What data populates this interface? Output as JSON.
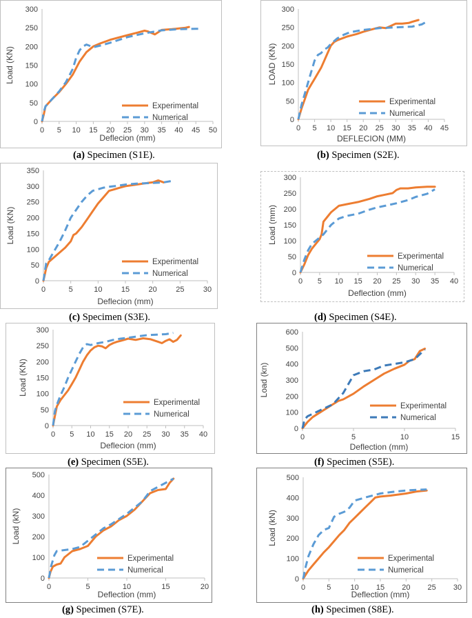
{
  "chart_data": [
    {
      "type": "line",
      "panel_label": "(a)",
      "caption_text": "Specimen (S1E).",
      "xlabel": "Deflecion (mm)",
      "ylabel": "Load (KN)",
      "xlim": [
        0,
        50
      ],
      "ylim": [
        0,
        300
      ],
      "xticks": [
        "0",
        "5",
        "10",
        "15",
        "20",
        "25",
        "30",
        "35",
        "40",
        "45",
        "50"
      ],
      "yticks": [
        "0",
        "50",
        "100",
        "150",
        "200",
        "250",
        "300"
      ],
      "series": [
        {
          "name": "Experimental",
          "color": "#ed7d31",
          "dash": "solid",
          "x": [
            0,
            0.5,
            1,
            3,
            5,
            7,
            9,
            11,
            13,
            15,
            17,
            20,
            25,
            28,
            30,
            31,
            33,
            34,
            35,
            38,
            40,
            42,
            43
          ],
          "y": [
            0,
            18,
            40,
            60,
            78,
            100,
            125,
            160,
            185,
            200,
            208,
            218,
            230,
            237,
            242,
            240,
            232,
            238,
            244,
            246,
            248,
            250,
            252
          ]
        },
        {
          "name": "Numerical",
          "color": "#5b9bd5",
          "dash": "dashed",
          "x": [
            0,
            0.5,
            1,
            3,
            5,
            7,
            9,
            10,
            11,
            12,
            13,
            15,
            17,
            20,
            25,
            30,
            35,
            40,
            45,
            46
          ],
          "y": [
            0,
            25,
            40,
            60,
            80,
            105,
            140,
            170,
            190,
            200,
            205,
            198,
            202,
            210,
            225,
            235,
            243,
            246,
            247,
            247
          ]
        }
      ]
    },
    {
      "type": "line",
      "panel_label": "(b)",
      "caption_text": "Specimen (S2E).",
      "xlabel": "DEFLECION (MM)",
      "ylabel": "LOAD (KN)",
      "xlim": [
        0,
        45
      ],
      "ylim": [
        0,
        300
      ],
      "xticks": [
        "0",
        "5",
        "10",
        "15",
        "20",
        "25",
        "30",
        "35",
        "40",
        "45"
      ],
      "yticks": [
        "0",
        "50",
        "100",
        "150",
        "200",
        "250",
        "300"
      ],
      "series": [
        {
          "name": "Experimental",
          "color": "#ed7d31",
          "dash": "solid",
          "x": [
            0,
            1,
            2,
            3,
            4,
            5,
            6,
            7,
            8,
            9,
            10,
            11,
            12,
            15,
            18,
            20,
            22,
            25,
            27,
            28,
            30,
            32,
            34,
            35,
            37
          ],
          "y": [
            0,
            30,
            55,
            80,
            95,
            110,
            125,
            140,
            160,
            180,
            200,
            210,
            215,
            225,
            232,
            238,
            243,
            250,
            248,
            252,
            260,
            260,
            262,
            265,
            270
          ]
        },
        {
          "name": "Numerical",
          "color": "#5b9bd5",
          "dash": "dashed",
          "x": [
            0,
            1,
            2,
            3,
            4,
            5,
            6,
            7,
            8,
            9,
            10,
            12,
            14,
            16,
            18,
            20,
            25,
            30,
            35,
            38,
            40
          ],
          "y": [
            0,
            40,
            70,
            100,
            130,
            160,
            175,
            180,
            190,
            195,
            205,
            220,
            230,
            237,
            240,
            243,
            248,
            250,
            252,
            258,
            268
          ]
        }
      ]
    },
    {
      "type": "line",
      "panel_label": "(c)",
      "caption_text": "Specimen (S3E).",
      "xlabel": "Deflecion (mm)",
      "ylabel": "Load (KN)",
      "xlim": [
        0,
        30
      ],
      "ylim": [
        0,
        350
      ],
      "xticks": [
        "0",
        "5",
        "10",
        "15",
        "20",
        "25",
        "30"
      ],
      "yticks": [
        "0",
        "50",
        "100",
        "150",
        "200",
        "250",
        "300",
        "350"
      ],
      "series": [
        {
          "name": "Experimental",
          "color": "#ed7d31",
          "dash": "solid",
          "x": [
            0,
            0.2,
            0.5,
            1,
            2,
            3,
            4,
            5,
            5.5,
            6,
            7,
            8,
            9,
            10,
            11,
            12,
            13,
            14,
            15,
            17,
            19,
            20,
            21,
            22
          ],
          "y": [
            0,
            15,
            40,
            60,
            75,
            90,
            105,
            125,
            145,
            150,
            170,
            195,
            220,
            245,
            265,
            285,
            290,
            295,
            300,
            305,
            310,
            312,
            318,
            312
          ]
        },
        {
          "name": "Numerical",
          "color": "#5b9bd5",
          "dash": "dashed",
          "x": [
            0,
            0.5,
            1,
            2,
            3,
            4,
            5,
            6,
            7,
            8,
            9,
            10,
            11,
            12,
            13,
            15,
            17,
            20,
            22,
            24
          ],
          "y": [
            0,
            55,
            65,
            95,
            125,
            160,
            200,
            225,
            250,
            270,
            285,
            290,
            295,
            298,
            300,
            305,
            308,
            310,
            312,
            318
          ]
        }
      ]
    },
    {
      "type": "line",
      "panel_label": "(d)",
      "caption_text": "Specimen (S4E).",
      "xlabel": "Deflection (mm)",
      "ylabel": "Load (mm)",
      "xlim": [
        0,
        40
      ],
      "ylim": [
        0,
        300
      ],
      "xticks": [
        "0",
        "5",
        "10",
        "15",
        "20",
        "25",
        "30",
        "35",
        "40"
      ],
      "yticks": [
        "0",
        "50",
        "100",
        "150",
        "200",
        "250",
        "300"
      ],
      "series": [
        {
          "name": "Experimental",
          "color": "#ed7d31",
          "dash": "solid",
          "x": [
            0,
            1,
            2,
            3,
            4,
            5,
            5.5,
            6,
            7,
            8,
            9,
            10,
            12,
            15,
            18,
            20,
            22,
            24,
            25,
            26,
            28,
            30,
            33,
            35
          ],
          "y": [
            0,
            25,
            55,
            75,
            90,
            105,
            120,
            160,
            175,
            190,
            200,
            210,
            215,
            222,
            232,
            240,
            245,
            250,
            260,
            265,
            265,
            268,
            270,
            270
          ]
        },
        {
          "name": "Numerical",
          "color": "#5b9bd5",
          "dash": "dashed",
          "x": [
            0,
            1,
            2,
            3,
            4,
            5,
            6,
            7,
            8,
            9,
            10,
            12,
            15,
            18,
            20,
            22,
            25,
            28,
            30,
            33,
            35
          ],
          "y": [
            0,
            40,
            70,
            90,
            100,
            110,
            120,
            135,
            150,
            160,
            170,
            178,
            185,
            198,
            205,
            210,
            218,
            228,
            238,
            248,
            262
          ]
        }
      ]
    },
    {
      "type": "line",
      "panel_label": "(e)",
      "caption_text": "Specimen (S5E).",
      "xlabel": "Deflecion (mm)",
      "ylabel": "Load (KN)",
      "xlim": [
        0,
        40
      ],
      "ylim": [
        0,
        300
      ],
      "xticks": [
        "0",
        "5",
        "10",
        "15",
        "20",
        "25",
        "30",
        "35",
        "40"
      ],
      "yticks": [
        "0",
        "50",
        "100",
        "150",
        "200",
        "250",
        "300"
      ],
      "series": [
        {
          "name": "Experimental",
          "color": "#ed7d31",
          "dash": "solid",
          "x": [
            0,
            0.5,
            1,
            2,
            3,
            4,
            5,
            6,
            7,
            8,
            9,
            10,
            11,
            12,
            13,
            14,
            15,
            16,
            17,
            18,
            20,
            22,
            24,
            26,
            28,
            29,
            30,
            31,
            32,
            33,
            34
          ],
          "y": [
            0,
            30,
            60,
            80,
            95,
            110,
            130,
            150,
            175,
            200,
            220,
            235,
            245,
            250,
            248,
            242,
            252,
            258,
            262,
            265,
            272,
            268,
            273,
            270,
            262,
            258,
            265,
            270,
            262,
            268,
            282
          ]
        },
        {
          "name": "Numerical",
          "color": "#5b9bd5",
          "dash": "dashed",
          "x": [
            0,
            0.5,
            1,
            2,
            3,
            4,
            5,
            6,
            7,
            8,
            9,
            10,
            11,
            12,
            14,
            16,
            18,
            20,
            25,
            30,
            32
          ],
          "y": [
            0,
            45,
            65,
            95,
            120,
            150,
            175,
            200,
            225,
            245,
            255,
            252,
            255,
            258,
            262,
            268,
            272,
            275,
            283,
            286,
            290
          ]
        }
      ]
    },
    {
      "type": "line",
      "panel_label": "(f)",
      "caption_text": "Specimen (S5E).",
      "xlabel": "Deflection (mm)",
      "ylabel": "Load (kn)",
      "xlim": [
        0,
        15
      ],
      "ylim": [
        0,
        600
      ],
      "xticks": [
        "0",
        "5",
        "10",
        "15"
      ],
      "yticks": [
        "0",
        "100",
        "200",
        "300",
        "400",
        "500",
        "600"
      ],
      "series": [
        {
          "name": "Experimental",
          "color": "#ed7d31",
          "dash": "solid",
          "x": [
            0,
            0.5,
            1,
            2,
            3,
            3.5,
            4,
            5,
            6,
            7,
            8,
            8.5,
            9,
            10,
            10.5,
            11,
            11.5,
            12
          ],
          "y": [
            0,
            40,
            70,
            110,
            150,
            170,
            180,
            215,
            260,
            300,
            340,
            355,
            370,
            395,
            420,
            430,
            480,
            495
          ]
        },
        {
          "name": "Numerical",
          "color": "#3d7ab8",
          "dash": "dashed",
          "x": [
            0,
            0.2,
            0.5,
            1,
            2,
            3,
            4,
            5,
            6,
            7,
            8,
            9,
            10,
            11,
            12
          ],
          "y": [
            0,
            55,
            75,
            90,
            120,
            150,
            220,
            330,
            355,
            365,
            390,
            400,
            410,
            430,
            490
          ]
        }
      ]
    },
    {
      "type": "line",
      "panel_label": "(g)",
      "caption_text": "Specimen (S7E).",
      "xlabel": "Deflection (mm)",
      "ylabel": "Load (kN)",
      "xlim": [
        0,
        20
      ],
      "ylim": [
        0,
        500
      ],
      "xticks": [
        "0",
        "5",
        "10",
        "15",
        "20"
      ],
      "yticks": [
        "0",
        "100",
        "200",
        "300",
        "400",
        "500"
      ],
      "series": [
        {
          "name": "Experimental",
          "color": "#ed7d31",
          "dash": "solid",
          "x": [
            0,
            0.2,
            0.5,
            1,
            1.5,
            2,
            3,
            4,
            5,
            6,
            7,
            8,
            9,
            10,
            11,
            12,
            13,
            14,
            15,
            15.5,
            16
          ],
          "y": [
            0,
            30,
            55,
            65,
            70,
            100,
            130,
            140,
            155,
            200,
            230,
            250,
            280,
            300,
            330,
            370,
            410,
            425,
            430,
            460,
            480
          ]
        },
        {
          "name": "Numerical",
          "color": "#5b9bd5",
          "dash": "dashed",
          "x": [
            0,
            0.3,
            0.7,
            1,
            2,
            3,
            4,
            5,
            6,
            7,
            8,
            9,
            10,
            11,
            12,
            13,
            14,
            15,
            16
          ],
          "y": [
            0,
            60,
            110,
            130,
            135,
            140,
            150,
            180,
            210,
            240,
            260,
            285,
            310,
            340,
            370,
            420,
            440,
            460,
            480
          ]
        }
      ]
    },
    {
      "type": "line",
      "panel_label": "(h)",
      "caption_text": "Specimen (S8E).",
      "xlabel": "Deflection (mm)",
      "ylabel": "Load (kN)",
      "xlim": [
        0,
        30
      ],
      "ylim": [
        0,
        500
      ],
      "xticks": [
        "0",
        "5",
        "10",
        "15",
        "20",
        "25",
        "30"
      ],
      "yticks": [
        "0",
        "100",
        "200",
        "300",
        "400",
        "500"
      ],
      "series": [
        {
          "name": "Experimental",
          "color": "#ed7d31",
          "dash": "solid",
          "x": [
            0,
            1,
            2,
            3,
            4,
            5,
            6,
            7,
            8,
            9,
            10,
            11,
            12,
            13,
            14,
            15,
            17,
            20,
            22,
            24
          ],
          "y": [
            0,
            40,
            70,
            100,
            130,
            155,
            185,
            215,
            240,
            275,
            300,
            325,
            350,
            375,
            400,
            405,
            410,
            420,
            430,
            435
          ]
        },
        {
          "name": "Numerical",
          "color": "#5b9bd5",
          "dash": "dashed",
          "x": [
            0,
            0.5,
            1,
            2,
            3,
            4,
            5,
            6,
            7,
            8,
            9,
            10,
            12,
            15,
            18,
            20,
            22,
            24
          ],
          "y": [
            0,
            60,
            110,
            170,
            215,
            240,
            250,
            305,
            320,
            330,
            350,
            385,
            400,
            420,
            430,
            435,
            438,
            440
          ]
        }
      ]
    }
  ],
  "legend": {
    "experimental": "Experimental",
    "numerical": "Numerical"
  }
}
